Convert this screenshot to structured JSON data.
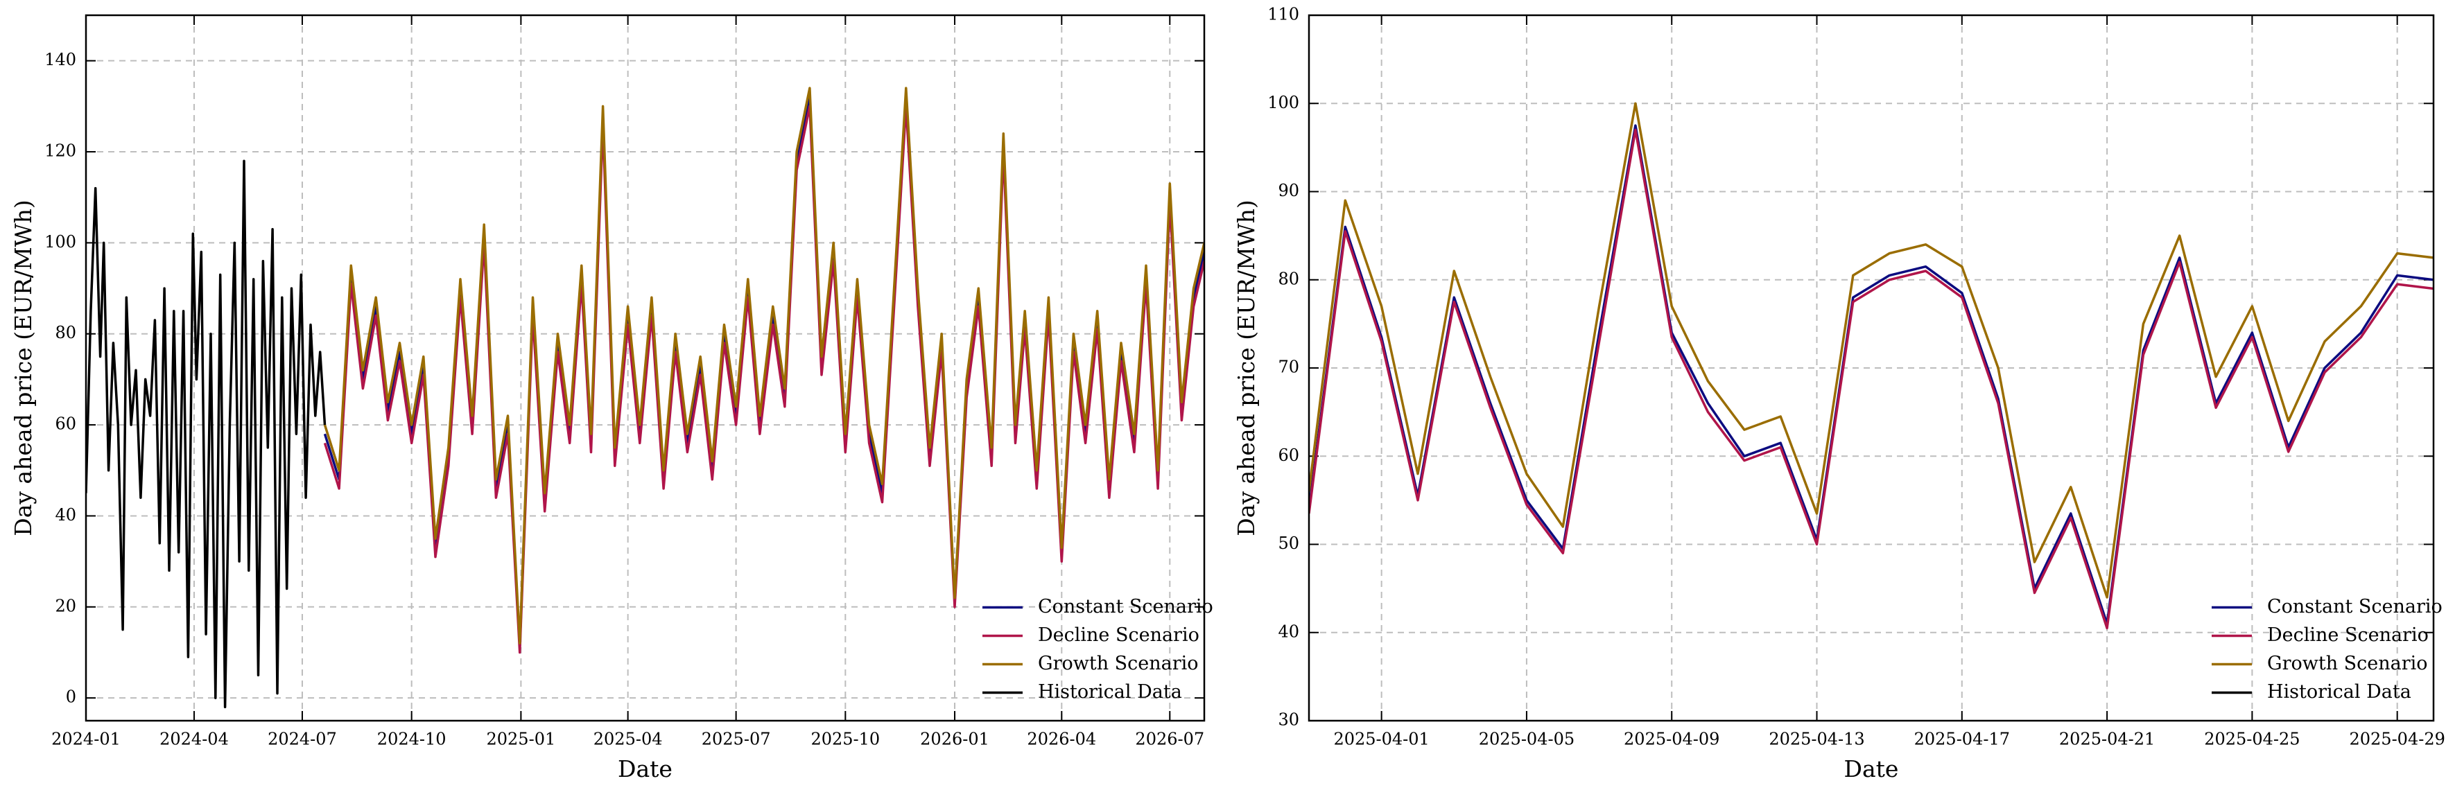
{
  "chart_data": [
    {
      "type": "line",
      "xlabel": "Date",
      "ylabel": "Day ahead price (EUR/MWh)",
      "xlim": [
        "2024-01-01",
        "2026-07-30"
      ],
      "ylim": [
        -5,
        150
      ],
      "xticks": [
        "2024-01",
        "2024-04",
        "2024-07",
        "2024-10",
        "2025-01",
        "2025-04",
        "2025-07",
        "2025-10",
        "2026-01",
        "2026-04",
        "2026-07"
      ],
      "yticks": [
        0,
        20,
        40,
        60,
        80,
        100,
        120,
        140
      ],
      "grid": true,
      "legend": "lower right",
      "series": [
        {
          "name": "Constant Scenario",
          "color": "#0c0c80",
          "x": [
            "2024-07-20",
            "2024-08-01",
            "2024-08-11",
            "2024-08-21",
            "2024-09-01",
            "2024-09-11",
            "2024-09-21",
            "2024-10-01",
            "2024-10-11",
            "2024-10-21",
            "2024-11-01",
            "2024-11-11",
            "2024-11-21",
            "2024-12-01",
            "2024-12-11",
            "2024-12-21",
            "2024-12-31",
            "2025-01-11",
            "2025-01-21",
            "2025-02-01",
            "2025-02-11",
            "2025-02-21",
            "2025-03-01",
            "2025-03-11",
            "2025-03-21",
            "2025-04-01",
            "2025-04-11",
            "2025-04-21",
            "2025-05-01",
            "2025-05-11",
            "2025-05-21",
            "2025-06-01",
            "2025-06-11",
            "2025-06-21",
            "2025-07-01",
            "2025-07-11",
            "2025-07-21",
            "2025-08-01",
            "2025-08-11",
            "2025-08-21",
            "2025-09-01",
            "2025-09-11",
            "2025-09-21",
            "2025-10-01",
            "2025-10-11",
            "2025-10-21",
            "2025-11-01",
            "2025-11-11",
            "2025-11-21",
            "2025-12-01",
            "2025-12-11",
            "2025-12-21",
            "2026-01-01",
            "2026-01-11",
            "2026-01-21",
            "2026-02-01",
            "2026-02-11",
            "2026-02-21",
            "2026-03-01",
            "2026-03-11",
            "2026-03-21",
            "2026-04-01",
            "2026-04-11",
            "2026-04-21",
            "2026-05-01",
            "2026-05-11",
            "2026-05-21",
            "2026-06-01",
            "2026-06-11",
            "2026-06-21",
            "2026-07-01",
            "2026-07-11",
            "2026-07-21",
            "2026-07-30"
          ],
          "values": [
            58,
            48,
            93,
            70,
            86,
            63,
            76,
            58,
            73,
            33,
            53,
            90,
            60,
            102,
            46,
            60,
            11,
            86,
            43,
            78,
            58,
            93,
            56,
            128,
            53,
            84,
            58,
            86,
            48,
            78,
            56,
            73,
            50,
            80,
            62,
            90,
            60,
            84,
            66,
            118,
            132,
            73,
            98,
            56,
            90,
            58,
            45,
            88,
            132,
            88,
            53,
            78,
            21,
            68,
            88,
            53,
            122,
            58,
            83,
            48,
            86,
            31,
            78,
            58,
            83,
            46,
            76,
            56,
            93,
            48,
            111,
            63,
            88,
            98
          ]
        },
        {
          "name": "Decline Scenario",
          "color": "#b0154a",
          "x": [
            "2024-07-20",
            "2024-08-01",
            "2024-08-11",
            "2024-08-21",
            "2024-09-01",
            "2024-09-11",
            "2024-09-21",
            "2024-10-01",
            "2024-10-11",
            "2024-10-21",
            "2024-11-01",
            "2024-11-11",
            "2024-11-21",
            "2024-12-01",
            "2024-12-11",
            "2024-12-21",
            "2024-12-31",
            "2025-01-11",
            "2025-01-21",
            "2025-02-01",
            "2025-02-11",
            "2025-02-21",
            "2025-03-01",
            "2025-03-11",
            "2025-03-21",
            "2025-04-01",
            "2025-04-11",
            "2025-04-21",
            "2025-05-01",
            "2025-05-11",
            "2025-05-21",
            "2025-06-01",
            "2025-06-11",
            "2025-06-21",
            "2025-07-01",
            "2025-07-11",
            "2025-07-21",
            "2025-08-01",
            "2025-08-11",
            "2025-08-21",
            "2025-09-01",
            "2025-09-11",
            "2025-09-21",
            "2025-10-01",
            "2025-10-11",
            "2025-10-21",
            "2025-11-01",
            "2025-11-11",
            "2025-11-21",
            "2025-12-01",
            "2025-12-11",
            "2025-12-21",
            "2026-01-01",
            "2026-01-11",
            "2026-01-21",
            "2026-02-01",
            "2026-02-11",
            "2026-02-21",
            "2026-03-01",
            "2026-03-11",
            "2026-03-21",
            "2026-04-01",
            "2026-04-11",
            "2026-04-21",
            "2026-05-01",
            "2026-05-11",
            "2026-05-21",
            "2026-06-01",
            "2026-06-11",
            "2026-06-21",
            "2026-07-01",
            "2026-07-11",
            "2026-07-21",
            "2026-07-30"
          ],
          "values": [
            56,
            46,
            91,
            68,
            84,
            61,
            74,
            56,
            71,
            31,
            51,
            88,
            58,
            100,
            44,
            58,
            10,
            84,
            41,
            76,
            56,
            91,
            54,
            126,
            51,
            82,
            56,
            84,
            46,
            76,
            54,
            71,
            48,
            78,
            60,
            88,
            58,
            82,
            64,
            116,
            130,
            71,
            96,
            54,
            88,
            56,
            43,
            86,
            130,
            86,
            51,
            76,
            20,
            66,
            86,
            51,
            120,
            56,
            81,
            46,
            84,
            30,
            76,
            56,
            81,
            44,
            74,
            54,
            91,
            46,
            109,
            61,
            86,
            96
          ]
        },
        {
          "name": "Growth Scenario",
          "color": "#9a6d00",
          "x": [
            "2024-07-20",
            "2024-08-01",
            "2024-08-11",
            "2024-08-21",
            "2024-09-01",
            "2024-09-11",
            "2024-09-21",
            "2024-10-01",
            "2024-10-11",
            "2024-10-21",
            "2024-11-01",
            "2024-11-11",
            "2024-11-21",
            "2024-12-01",
            "2024-12-11",
            "2024-12-21",
            "2024-12-31",
            "2025-01-11",
            "2025-01-21",
            "2025-02-01",
            "2025-02-11",
            "2025-02-21",
            "2025-03-01",
            "2025-03-11",
            "2025-03-21",
            "2025-04-01",
            "2025-04-11",
            "2025-04-21",
            "2025-05-01",
            "2025-05-11",
            "2025-05-21",
            "2025-06-01",
            "2025-06-11",
            "2025-06-21",
            "2025-07-01",
            "2025-07-11",
            "2025-07-21",
            "2025-08-01",
            "2025-08-11",
            "2025-08-21",
            "2025-09-01",
            "2025-09-11",
            "2025-09-21",
            "2025-10-01",
            "2025-10-11",
            "2025-10-21",
            "2025-11-01",
            "2025-11-11",
            "2025-11-21",
            "2025-12-01",
            "2025-12-11",
            "2025-12-21",
            "2026-01-01",
            "2026-01-11",
            "2026-01-21",
            "2026-02-01",
            "2026-02-11",
            "2026-02-21",
            "2026-03-01",
            "2026-03-11",
            "2026-03-21",
            "2026-04-01",
            "2026-04-11",
            "2026-04-21",
            "2026-05-01",
            "2026-05-11",
            "2026-05-21",
            "2026-06-01",
            "2026-06-11",
            "2026-06-21",
            "2026-07-01",
            "2026-07-11",
            "2026-07-21",
            "2026-07-30"
          ],
          "values": [
            60,
            50,
            95,
            72,
            88,
            65,
            78,
            60,
            75,
            35,
            55,
            92,
            62,
            104,
            48,
            62,
            12,
            88,
            45,
            80,
            60,
            95,
            58,
            130,
            55,
            86,
            60,
            88,
            50,
            80,
            58,
            75,
            52,
            82,
            64,
            92,
            62,
            86,
            68,
            120,
            134,
            75,
            100,
            58,
            92,
            60,
            47,
            90,
            134,
            90,
            55,
            80,
            22,
            70,
            90,
            55,
            124,
            60,
            85,
            50,
            88,
            33,
            80,
            60,
            85,
            48,
            78,
            58,
            95,
            50,
            113,
            65,
            90,
            100
          ]
        },
        {
          "name": "Historical Data",
          "color": "#000000",
          "x": [
            "2024-01-01",
            "2024-01-05",
            "2024-01-09",
            "2024-01-13",
            "2024-01-16",
            "2024-01-20",
            "2024-01-24",
            "2024-01-28",
            "2024-02-01",
            "2024-02-04",
            "2024-02-08",
            "2024-02-12",
            "2024-02-16",
            "2024-02-20",
            "2024-02-24",
            "2024-02-28",
            "2024-03-03",
            "2024-03-07",
            "2024-03-11",
            "2024-03-15",
            "2024-03-19",
            "2024-03-23",
            "2024-03-27",
            "2024-03-31",
            "2024-04-03",
            "2024-04-07",
            "2024-04-11",
            "2024-04-15",
            "2024-04-19",
            "2024-04-23",
            "2024-04-27",
            "2024-05-01",
            "2024-05-05",
            "2024-05-09",
            "2024-05-13",
            "2024-05-17",
            "2024-05-21",
            "2024-05-25",
            "2024-05-29",
            "2024-06-02",
            "2024-06-06",
            "2024-06-10",
            "2024-06-14",
            "2024-06-18",
            "2024-06-22",
            "2024-06-26",
            "2024-06-30",
            "2024-07-04",
            "2024-07-08",
            "2024-07-12",
            "2024-07-16",
            "2024-07-20"
          ],
          "values": [
            45,
            85,
            112,
            75,
            100,
            50,
            78,
            60,
            15,
            88,
            60,
            72,
            44,
            70,
            62,
            83,
            34,
            90,
            28,
            85,
            32,
            85,
            9,
            102,
            70,
            98,
            14,
            80,
            0,
            93,
            -2,
            60,
            100,
            30,
            118,
            28,
            92,
            5,
            96,
            55,
            103,
            1,
            88,
            24,
            90,
            58,
            93,
            44,
            82,
            62,
            76,
            60
          ]
        }
      ]
    },
    {
      "type": "line",
      "xlabel": "Date",
      "ylabel": "Day ahead price (EUR/MWh)",
      "xlim": [
        "2025-03-30",
        "2025-04-30"
      ],
      "ylim": [
        30,
        110
      ],
      "xticks": [
        "2025-04-01",
        "2025-04-05",
        "2025-04-09",
        "2025-04-13",
        "2025-04-17",
        "2025-04-21",
        "2025-04-25",
        "2025-04-29"
      ],
      "yticks": [
        30,
        40,
        50,
        60,
        70,
        80,
        90,
        100,
        110
      ],
      "grid": true,
      "legend": "lower right",
      "series": [
        {
          "name": "Constant Scenario",
          "color": "#0c0c80",
          "x": [
            "2025-03-30",
            "2025-03-31",
            "2025-04-01",
            "2025-04-02",
            "2025-04-03",
            "2025-04-04",
            "2025-04-05",
            "2025-04-06",
            "2025-04-07",
            "2025-04-08",
            "2025-04-09",
            "2025-04-10",
            "2025-04-11",
            "2025-04-12",
            "2025-04-13",
            "2025-04-14",
            "2025-04-15",
            "2025-04-16",
            "2025-04-17",
            "2025-04-18",
            "2025-04-19",
            "2025-04-20",
            "2025-04-21",
            "2025-04-22",
            "2025-04-23",
            "2025-04-24",
            "2025-04-25",
            "2025-04-26",
            "2025-04-27",
            "2025-04-28",
            "2025-04-29",
            "2025-04-30"
          ],
          "values": [
            54,
            86,
            73.5,
            55.5,
            78,
            66,
            55,
            49.5,
            74,
            97.5,
            74,
            66,
            60,
            61.5,
            50.5,
            78,
            80.5,
            81.5,
            78.5,
            66.5,
            45,
            53.5,
            41,
            72,
            82.5,
            66,
            74,
            61,
            70,
            74,
            80.5,
            80
          ]
        },
        {
          "name": "Decline Scenario",
          "color": "#b0154a",
          "x": [
            "2025-03-30",
            "2025-03-31",
            "2025-04-01",
            "2025-04-02",
            "2025-04-03",
            "2025-04-04",
            "2025-04-05",
            "2025-04-06",
            "2025-04-07",
            "2025-04-08",
            "2025-04-09",
            "2025-04-10",
            "2025-04-11",
            "2025-04-12",
            "2025-04-13",
            "2025-04-14",
            "2025-04-15",
            "2025-04-16",
            "2025-04-17",
            "2025-04-18",
            "2025-04-19",
            "2025-04-20",
            "2025-04-21",
            "2025-04-22",
            "2025-04-23",
            "2025-04-24",
            "2025-04-25",
            "2025-04-26",
            "2025-04-27",
            "2025-04-28",
            "2025-04-29",
            "2025-04-30"
          ],
          "values": [
            53.5,
            85.5,
            73,
            55,
            77.5,
            65.5,
            54.5,
            49,
            73,
            97,
            73.5,
            65,
            59.5,
            61,
            50,
            77.5,
            80,
            81,
            78,
            66,
            44.5,
            53,
            40.5,
            71.5,
            82,
            65.5,
            73.5,
            60.5,
            69.5,
            73.5,
            79.5,
            79
          ]
        },
        {
          "name": "Growth Scenario",
          "color": "#9a6d00",
          "x": [
            "2025-03-30",
            "2025-03-31",
            "2025-04-01",
            "2025-04-02",
            "2025-04-03",
            "2025-04-04",
            "2025-04-05",
            "2025-04-06",
            "2025-04-07",
            "2025-04-08",
            "2025-04-09",
            "2025-04-10",
            "2025-04-11",
            "2025-04-12",
            "2025-04-13",
            "2025-04-14",
            "2025-04-15",
            "2025-04-16",
            "2025-04-17",
            "2025-04-18",
            "2025-04-19",
            "2025-04-20",
            "2025-04-21",
            "2025-04-22",
            "2025-04-23",
            "2025-04-24",
            "2025-04-25",
            "2025-04-26",
            "2025-04-27",
            "2025-04-28",
            "2025-04-29",
            "2025-04-30"
          ],
          "values": [
            56,
            89,
            77,
            58,
            81,
            69,
            58,
            52,
            77,
            100,
            77,
            68.5,
            63,
            64.5,
            53.5,
            80.5,
            83,
            84,
            81.5,
            70,
            48,
            56.5,
            44,
            75,
            85,
            69,
            77,
            64,
            73,
            77,
            83,
            82.5
          ]
        },
        {
          "name": "Historical Data",
          "color": "#000000",
          "x": [],
          "values": []
        }
      ]
    }
  ]
}
